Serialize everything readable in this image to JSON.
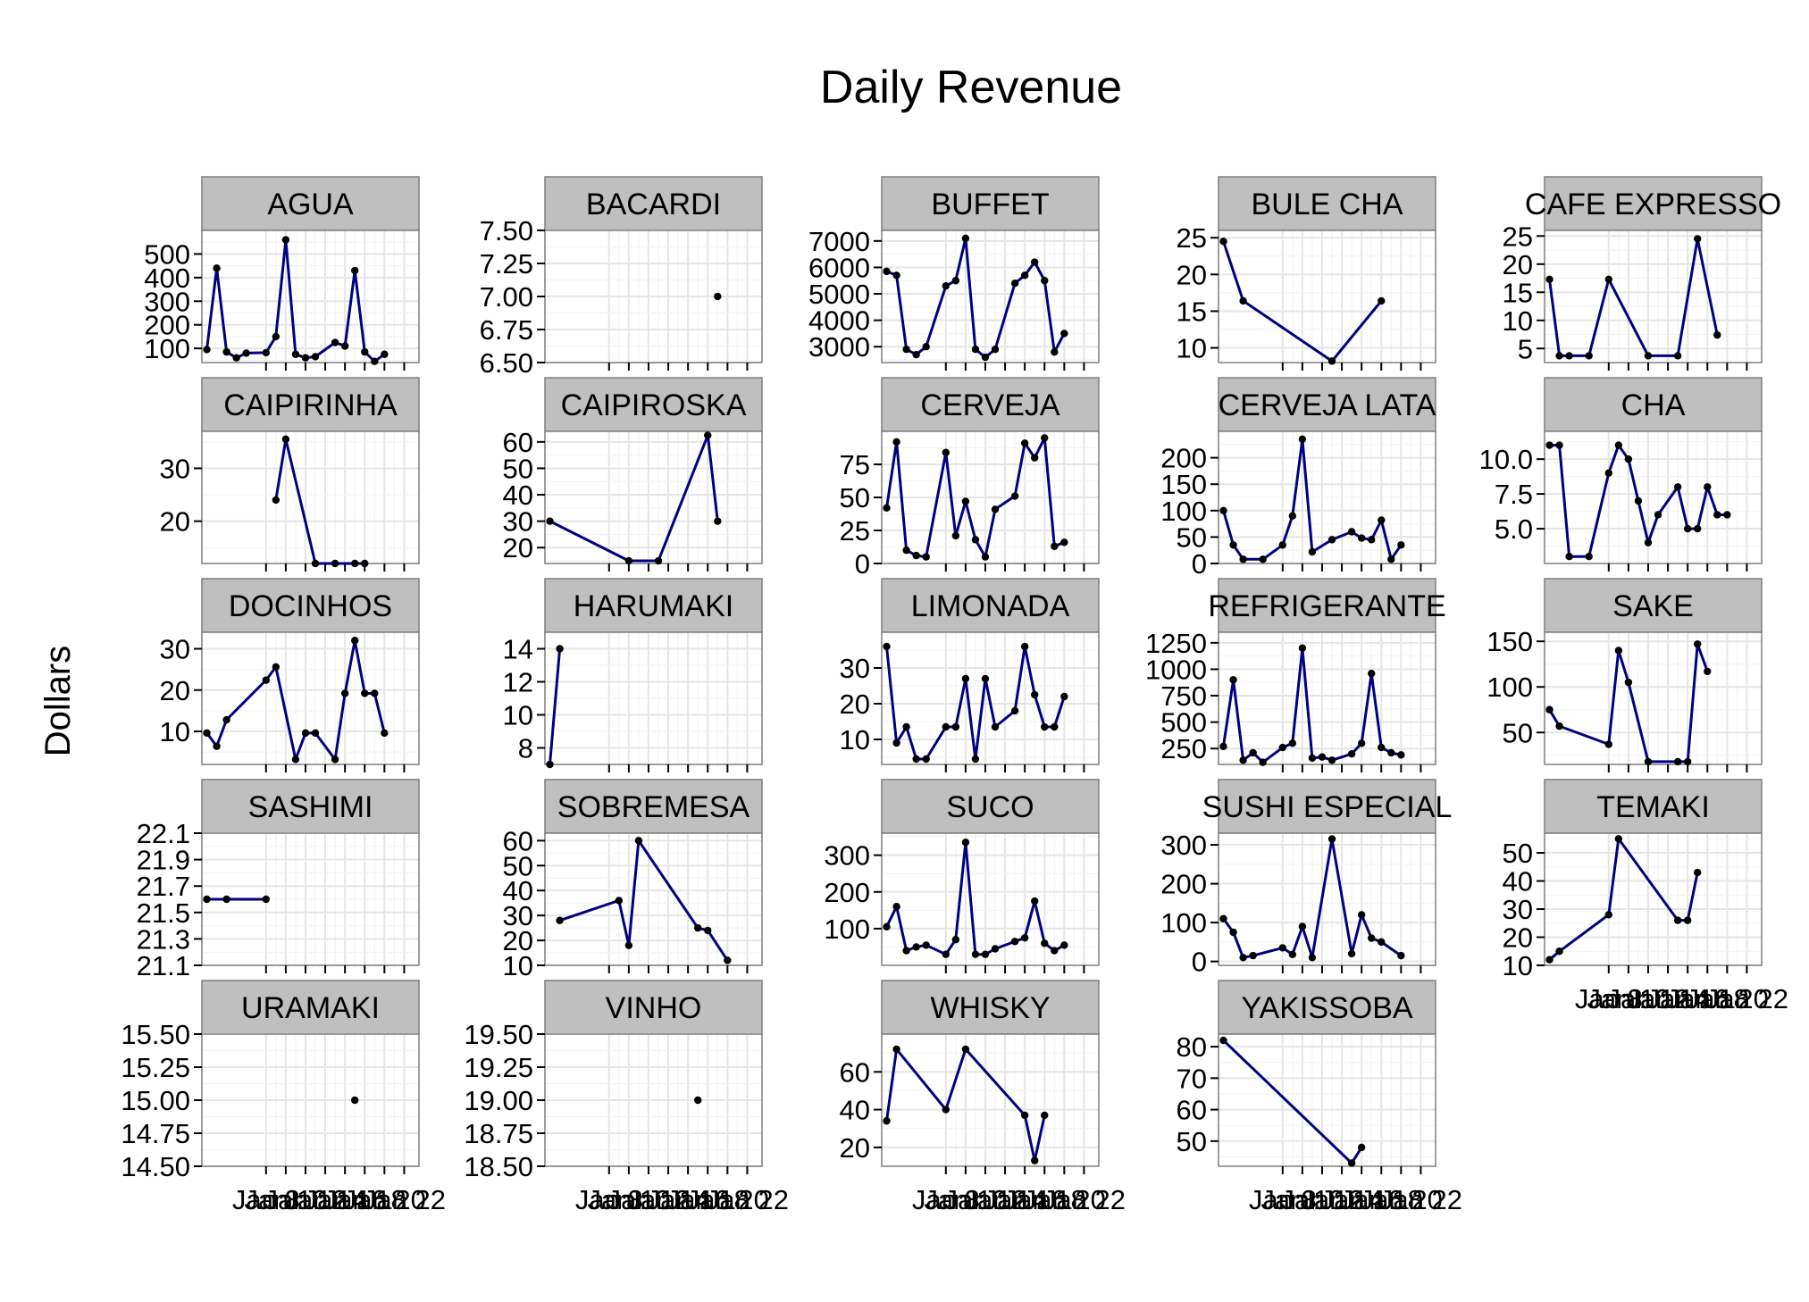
{
  "colors": {
    "line": "#000080",
    "point": "#000000",
    "panel_bg": "#ffffff",
    "grid": "#e5e5e5",
    "strip_bg": "#bfbfbf",
    "border": "#7f7f7f"
  },
  "chart_data": {
    "type": "line",
    "title": "Daily Revenue",
    "xlabel": "",
    "ylabel": "Dollars",
    "grid": true,
    "facet_layout": {
      "columns": 5,
      "rows": 5
    },
    "x_ticks": [
      "Jan 8",
      "Jan 10",
      "Jan 12",
      "Jan 14",
      "Jan 16",
      "Jan 18",
      "Jan 20",
      "Jan 22"
    ],
    "x_domain": [
      1.5,
      23.5
    ],
    "panels": [
      {
        "name": "AGUA",
        "y_ticks": [
          100,
          200,
          300,
          400,
          500
        ],
        "ylim": [
          40,
          600
        ],
        "x": [
          2,
          3,
          4,
          5,
          6,
          8,
          9,
          10,
          11,
          12,
          13,
          15,
          16,
          17,
          18,
          19,
          20
        ],
        "y": [
          95,
          440,
          85,
          60,
          80,
          82,
          150,
          560,
          75,
          60,
          65,
          125,
          110,
          430,
          85,
          45,
          75
        ]
      },
      {
        "name": "BACARDI",
        "y_ticks": [
          6.5,
          6.75,
          7.0,
          7.25,
          7.5
        ],
        "tick_decimals": 2,
        "ylim": [
          6.5,
          7.5
        ],
        "x": [
          19
        ],
        "y": [
          7.0
        ]
      },
      {
        "name": "BUFFET",
        "y_ticks": [
          3000,
          4000,
          5000,
          6000,
          7000
        ],
        "ylim": [
          2400,
          7400
        ],
        "x": [
          2,
          3,
          4,
          5,
          6,
          8,
          9,
          10,
          11,
          12,
          13,
          15,
          16,
          17,
          18,
          19,
          20
        ],
        "y": [
          5850,
          5700,
          2900,
          2700,
          3000,
          5300,
          5500,
          7100,
          2900,
          2600,
          2900,
          5400,
          5700,
          6200,
          5500,
          2800,
          3500
        ]
      },
      {
        "name": "BULE CHA",
        "y_ticks": [
          10,
          15,
          20,
          25
        ],
        "ylim": [
          8,
          26
        ],
        "x": [
          2,
          4,
          13,
          18
        ],
        "y": [
          24.5,
          16.4,
          8.2,
          16.4
        ]
      },
      {
        "name": "CAFE EXPRESSO",
        "y_ticks": [
          5,
          10,
          15,
          20,
          25
        ],
        "ylim": [
          2.5,
          26
        ],
        "x": [
          2,
          3,
          4,
          6,
          8,
          12,
          15,
          17,
          19
        ],
        "y": [
          17.3,
          3.7,
          3.7,
          3.7,
          17.3,
          3.7,
          3.7,
          24.5,
          7.4
        ]
      },
      {
        "name": "CAIPIRINHA",
        "y_ticks": [
          20,
          30
        ],
        "ylim": [
          12,
          37
        ],
        "x": [
          9,
          10,
          13,
          15,
          17,
          18
        ],
        "y": [
          24.0,
          35.5,
          12.0,
          12.0,
          12.0,
          12.0
        ]
      },
      {
        "name": "CAIPIROSKA",
        "y_ticks": [
          20,
          30,
          40,
          50,
          60
        ],
        "ylim": [
          14,
          64
        ],
        "x": [
          2,
          10,
          13,
          18,
          19
        ],
        "y": [
          30,
          15,
          15,
          62.5,
          30
        ]
      },
      {
        "name": "CERVEJA",
        "y_ticks": [
          0,
          25,
          50,
          75
        ],
        "ylim": [
          0,
          100
        ],
        "x": [
          2,
          3,
          4,
          5,
          6,
          8,
          9,
          10,
          11,
          12,
          13,
          15,
          16,
          17,
          18,
          19,
          20
        ],
        "y": [
          42,
          92,
          10,
          6,
          5,
          84,
          21,
          47,
          18,
          5,
          41,
          51,
          91,
          80,
          95,
          13,
          16
        ]
      },
      {
        "name": "CERVEJA LATA",
        "y_ticks": [
          0,
          50,
          100,
          150,
          200
        ],
        "ylim": [
          0,
          250
        ],
        "x": [
          2,
          3,
          4,
          6,
          8,
          9,
          10,
          11,
          13,
          15,
          16,
          17,
          18,
          19,
          20
        ],
        "y": [
          100,
          35,
          8,
          8,
          35,
          90,
          235,
          22,
          45,
          60,
          48,
          45,
          82,
          8,
          35
        ]
      },
      {
        "name": "CHA",
        "y_ticks": [
          5.0,
          7.5,
          10.0
        ],
        "tick_decimals": 1,
        "ylim": [
          2.5,
          12
        ],
        "x": [
          2,
          3,
          4,
          6,
          8,
          9,
          10,
          11,
          12,
          13,
          15,
          16,
          17,
          18,
          19,
          20
        ],
        "y": [
          11,
          11,
          3,
          3,
          9,
          11,
          10,
          7,
          4,
          6,
          8,
          5,
          5,
          8,
          6,
          6
        ]
      },
      {
        "name": "DOCINHOS",
        "y_ticks": [
          10,
          20,
          30
        ],
        "ylim": [
          2,
          34
        ],
        "x": [
          2,
          3,
          4,
          8,
          9,
          11,
          12,
          13,
          15,
          16,
          17,
          18,
          19,
          20
        ],
        "y": [
          9.6,
          6.4,
          12.8,
          22.4,
          25.6,
          3.2,
          9.6,
          9.6,
          3.2,
          19.2,
          32,
          19.2,
          19.2,
          9.6
        ]
      },
      {
        "name": "HARUMAKI",
        "y_ticks": [
          8,
          10,
          12,
          14
        ],
        "ylim": [
          7,
          15
        ],
        "x": [
          2,
          3
        ],
        "y": [
          7,
          14
        ]
      },
      {
        "name": "LIMONADA",
        "y_ticks": [
          10,
          20,
          30
        ],
        "ylim": [
          3,
          40
        ],
        "x": [
          2,
          3,
          4,
          5,
          6,
          8,
          9,
          10,
          11,
          12,
          13,
          15,
          16,
          17,
          18,
          19,
          20
        ],
        "y": [
          36,
          9,
          13.5,
          4.5,
          4.5,
          13.5,
          13.5,
          27,
          4.5,
          27,
          13.5,
          18,
          36,
          22.5,
          13.5,
          13.5,
          22
        ]
      },
      {
        "name": "REFRIGERANTE",
        "y_ticks": [
          250,
          500,
          750,
          1000,
          1250
        ],
        "ylim": [
          100,
          1350
        ],
        "x": [
          2,
          3,
          4,
          5,
          6,
          8,
          9,
          10,
          11,
          12,
          13,
          15,
          16,
          17,
          18,
          19,
          20
        ],
        "y": [
          270,
          900,
          140,
          210,
          120,
          260,
          300,
          1200,
          160,
          170,
          140,
          200,
          300,
          960,
          260,
          210,
          190
        ]
      },
      {
        "name": "SAKE",
        "y_ticks": [
          50,
          100,
          150
        ],
        "ylim": [
          15,
          160
        ],
        "x": [
          2,
          3,
          8,
          9,
          10,
          12,
          15,
          16,
          17,
          18
        ],
        "y": [
          75,
          57,
          37,
          140,
          105,
          18,
          18,
          18,
          147,
          117
        ]
      },
      {
        "name": "SASHIMI",
        "y_ticks": [
          21.1,
          21.3,
          21.5,
          21.7,
          21.9,
          22.1
        ],
        "tick_decimals": 1,
        "ylim": [
          21.1,
          22.1
        ],
        "x": [
          2,
          4,
          8
        ],
        "y": [
          21.6,
          21.6,
          21.6
        ]
      },
      {
        "name": "SOBREMESA",
        "y_ticks": [
          10,
          20,
          30,
          40,
          50,
          60
        ],
        "ylim": [
          10,
          63
        ],
        "x": [
          3,
          9,
          10,
          11,
          17,
          18,
          20
        ],
        "y": [
          28,
          36,
          18,
          60,
          25,
          24,
          12
        ]
      },
      {
        "name": "SUCO",
        "y_ticks": [
          100,
          200,
          300
        ],
        "ylim": [
          0,
          360
        ],
        "x": [
          2,
          3,
          4,
          5,
          6,
          8,
          9,
          10,
          11,
          12,
          13,
          15,
          16,
          17,
          18,
          19,
          20
        ],
        "y": [
          105,
          160,
          40,
          50,
          55,
          30,
          70,
          335,
          30,
          30,
          45,
          65,
          75,
          175,
          60,
          40,
          55
        ]
      },
      {
        "name": "SUSHI ESPECIAL",
        "y_ticks": [
          0,
          100,
          200,
          300
        ],
        "ylim": [
          -10,
          330
        ],
        "x": [
          2,
          3,
          4,
          5,
          8,
          9,
          10,
          11,
          13,
          15,
          16,
          17,
          18,
          20
        ],
        "y": [
          110,
          75,
          10,
          15,
          35,
          18,
          90,
          10,
          315,
          20,
          120,
          60,
          50,
          15
        ]
      },
      {
        "name": "TEMAKI",
        "y_ticks": [
          10,
          20,
          30,
          40,
          50
        ],
        "ylim": [
          10,
          57
        ],
        "x": [
          2,
          3,
          8,
          9,
          15,
          16,
          17
        ],
        "y": [
          12,
          15,
          28,
          55,
          26,
          26,
          43
        ]
      },
      {
        "name": "URAMAKI",
        "y_ticks": [
          14.5,
          14.75,
          15.0,
          15.25,
          15.5
        ],
        "tick_decimals": 2,
        "ylim": [
          14.5,
          15.5
        ],
        "x": [
          17
        ],
        "y": [
          15.0
        ]
      },
      {
        "name": "VINHO",
        "y_ticks": [
          18.5,
          18.75,
          19.0,
          19.25,
          19.5
        ],
        "tick_decimals": 2,
        "ylim": [
          18.5,
          19.5
        ],
        "x": [
          17
        ],
        "y": [
          19.0
        ]
      },
      {
        "name": "WHISKY",
        "y_ticks": [
          20,
          40,
          60
        ],
        "ylim": [
          10,
          80
        ],
        "x": [
          2,
          3,
          8,
          10,
          16,
          17,
          18
        ],
        "y": [
          34,
          72,
          40,
          72,
          37,
          13,
          37
        ]
      },
      {
        "name": "YAKISSOBA",
        "y_ticks": [
          50,
          60,
          70,
          80
        ],
        "ylim": [
          42,
          84
        ],
        "x": [
          2,
          15,
          16
        ],
        "y": [
          82,
          43,
          48
        ]
      }
    ]
  }
}
